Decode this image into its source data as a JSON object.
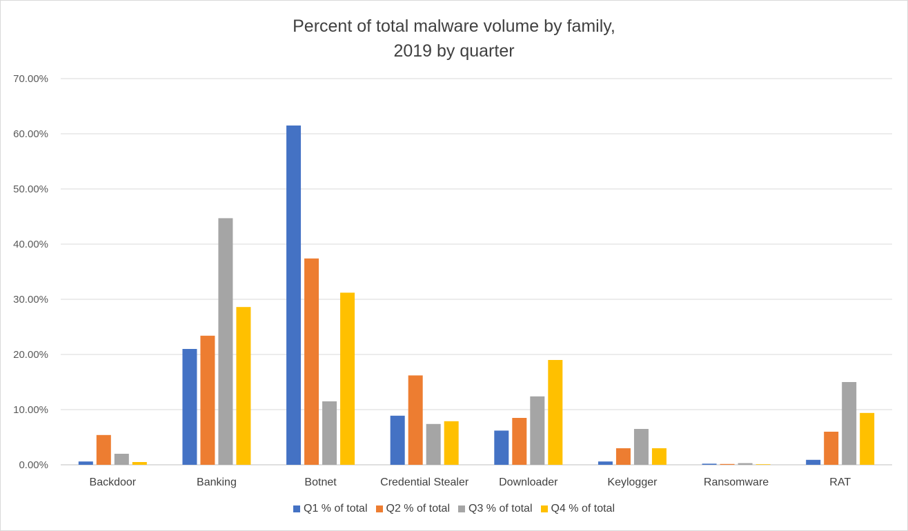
{
  "chart_data": {
    "type": "bar",
    "title_lines": [
      "Percent of total malware volume by family,",
      "2019 by quarter"
    ],
    "categories": [
      "Backdoor",
      "Banking",
      "Botnet",
      "Credential Stealer",
      "Downloader",
      "Keylogger",
      "Ransomware",
      "RAT"
    ],
    "series": [
      {
        "name": "Q1 % of total",
        "color": "#4472C4",
        "values": [
          0.6,
          21.0,
          61.5,
          8.9,
          6.2,
          0.6,
          0.2,
          0.9
        ]
      },
      {
        "name": "Q2 % of total",
        "color": "#ED7D31",
        "values": [
          5.4,
          23.4,
          37.4,
          16.2,
          8.5,
          3.0,
          0.15,
          6.0
        ]
      },
      {
        "name": "Q3 % of total",
        "color": "#A5A5A5",
        "values": [
          2.0,
          44.7,
          11.5,
          7.4,
          12.4,
          6.5,
          0.3,
          15.0
        ]
      },
      {
        "name": "Q4 % of total",
        "color": "#FFC000",
        "values": [
          0.5,
          28.6,
          31.2,
          7.9,
          19.0,
          3.0,
          0.1,
          9.4
        ]
      }
    ],
    "yticks": [
      "0.00%",
      "10.00%",
      "20.00%",
      "30.00%",
      "40.00%",
      "50.00%",
      "60.00%",
      "70.00%"
    ],
    "ylim": [
      0,
      70
    ],
    "grid": true,
    "legend_position": "bottom"
  }
}
